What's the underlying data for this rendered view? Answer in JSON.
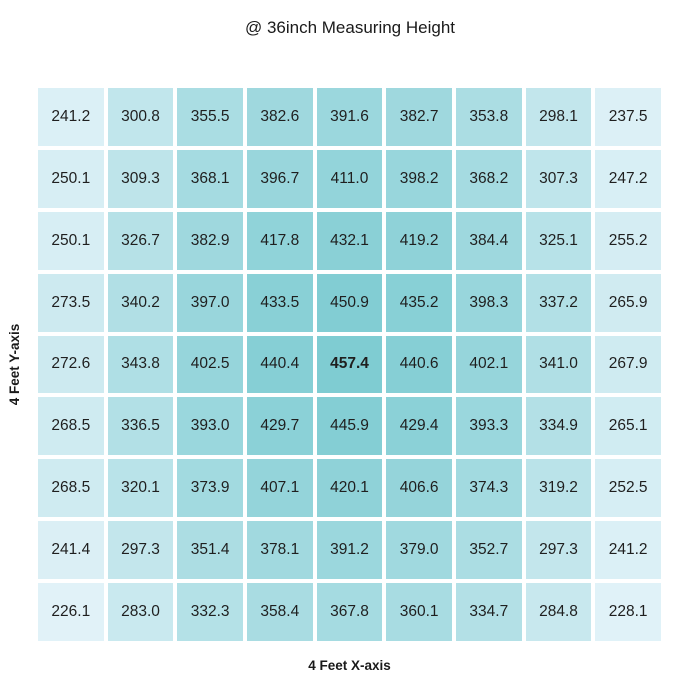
{
  "chart_data": {
    "type": "heatmap",
    "title": "@ 36inch Measuring Height",
    "xlabel": "4 Feet X-axis",
    "ylabel": "4 Feet Y-axis",
    "rows": 9,
    "cols": 9,
    "values": [
      [
        241.2,
        300.8,
        355.5,
        382.6,
        391.6,
        382.7,
        353.8,
        298.1,
        237.5
      ],
      [
        250.1,
        309.3,
        368.1,
        396.7,
        411.0,
        398.2,
        368.2,
        307.3,
        247.2
      ],
      [
        250.1,
        326.7,
        382.9,
        417.8,
        432.1,
        419.2,
        384.4,
        325.1,
        255.2
      ],
      [
        273.5,
        340.2,
        397.0,
        433.5,
        450.9,
        435.2,
        398.3,
        337.2,
        265.9
      ],
      [
        272.6,
        343.8,
        402.5,
        440.4,
        457.4,
        440.6,
        402.1,
        341.0,
        267.9
      ],
      [
        268.5,
        336.5,
        393.0,
        429.7,
        445.9,
        429.4,
        393.3,
        334.9,
        265.1
      ],
      [
        268.5,
        320.1,
        373.9,
        407.1,
        420.1,
        406.6,
        374.3,
        319.2,
        252.5
      ],
      [
        241.4,
        297.3,
        351.4,
        378.1,
        391.2,
        379.0,
        352.7,
        297.3,
        241.2
      ],
      [
        226.1,
        283.0,
        332.3,
        358.4,
        367.8,
        360.1,
        334.7,
        284.8,
        228.1
      ]
    ],
    "value_decimals": 1,
    "value_range": [
      226.1,
      457.4
    ],
    "min_value": 226.1,
    "max_value": 457.4,
    "max_value_bold": true,
    "colors": {
      "min_cell": "#e1f2f8",
      "max_cell": "#7fccd2",
      "cell_text": "#1f1f1f",
      "label_text": "#1a1a1a",
      "grid_gap": "#ffffff",
      "background": "#ffffff"
    },
    "legend": "none",
    "grid": "white-gaps-between-cells"
  }
}
